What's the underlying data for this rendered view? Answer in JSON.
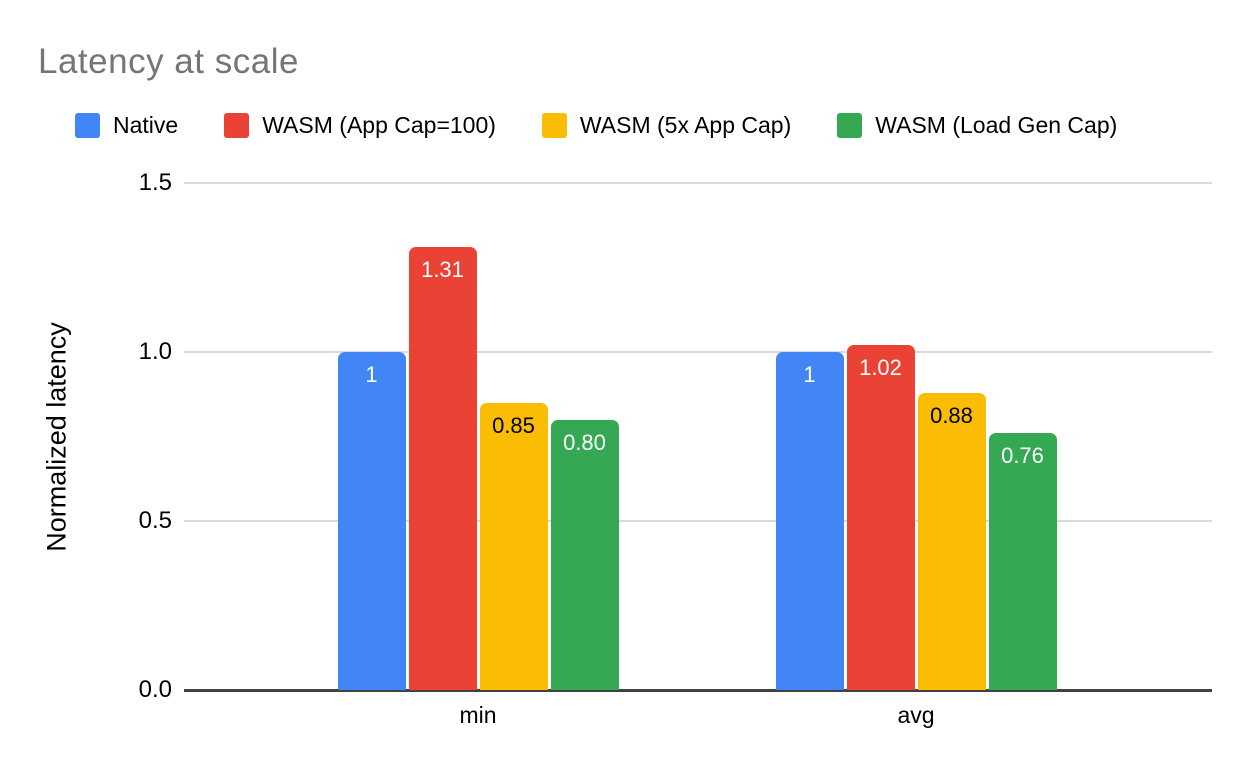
{
  "chart_data": {
    "type": "bar",
    "title": "Latency at scale",
    "ylabel": "Normalized latency",
    "xlabel": "",
    "categories": [
      "min",
      "avg"
    ],
    "category_keys": [
      "min",
      "avg"
    ],
    "series": [
      {
        "key": "native",
        "name": "Native",
        "color": "#4285F4",
        "label_color": "#ffffff",
        "values": [
          1,
          1
        ],
        "labels": [
          "1",
          "1"
        ]
      },
      {
        "key": "wasm-app-cap-100",
        "name": "WASM (App Cap=100)",
        "color": "#EA4335",
        "label_color": "#ffffff",
        "values": [
          1.31,
          1.02
        ],
        "labels": [
          "1.31",
          "1.02"
        ]
      },
      {
        "key": "wasm-5x-app-cap",
        "name": "WASM (5x App Cap)",
        "color": "#FBBC04",
        "label_color": "#000000",
        "values": [
          0.85,
          0.88
        ],
        "labels": [
          "0.85",
          "0.88"
        ]
      },
      {
        "key": "wasm-load-gen-cap",
        "name": "WASM (Load Gen Cap)",
        "color": "#34A853",
        "label_color": "#ffffff",
        "values": [
          0.8,
          0.76
        ],
        "labels": [
          "0.80",
          "0.76"
        ]
      }
    ],
    "ylim": [
      0,
      1.5
    ],
    "yticks": [
      0,
      0.5,
      1,
      1.5
    ],
    "ytick_labels": [
      "0.0",
      "0.5",
      "1.0",
      "1.5"
    ],
    "grid": true,
    "legend_position": "top",
    "colors": {
      "title_text": "#757575",
      "axis_line": "#424242",
      "gridline": "#d9d9d9",
      "background": "#ffffff"
    }
  }
}
